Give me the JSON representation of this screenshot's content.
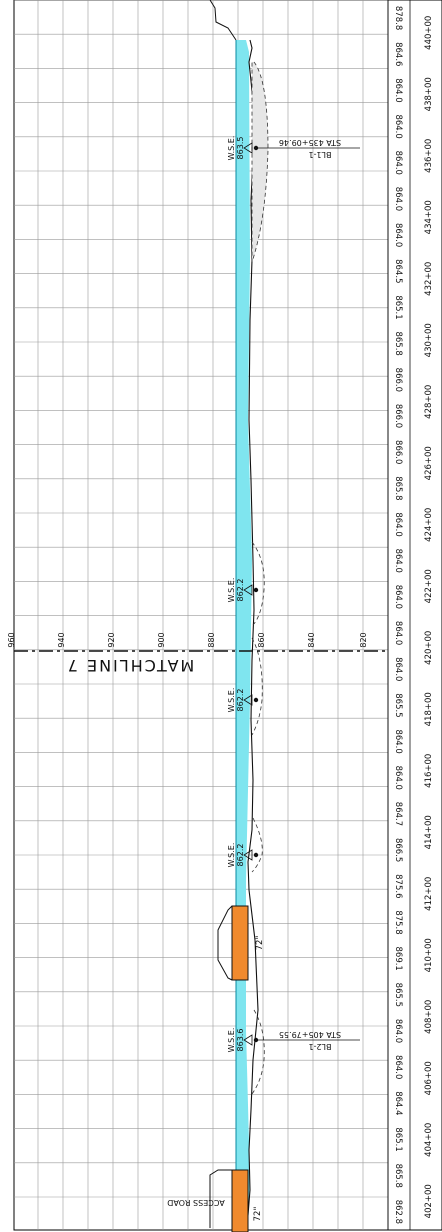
{
  "stations": [
    "402+00",
    "404+00",
    "406+00",
    "408+00",
    "410+00",
    "412+00",
    "414+00",
    "416+00",
    "418+00",
    "420+00",
    "422+00",
    "424+00",
    "426+00",
    "428+00",
    "430+00",
    "432+00",
    "434+00",
    "436+00",
    "438+00",
    "440+00"
  ],
  "ground_elevations": [
    "862.8",
    "865.8",
    "865.1",
    "864.4",
    "864.0",
    "864.0",
    "865.5",
    "869.1",
    "875.8",
    "875.6",
    "866.5",
    "864.7",
    "864.0",
    "864.0",
    "865.5",
    "864.0",
    "864.0",
    "864.0",
    "864.0",
    "864.0",
    "865.8",
    "866.0",
    "866.0",
    "866.0",
    "865.8",
    "865.1",
    "864.5",
    "864.0",
    "864.0",
    "864.0",
    "864.0",
    "864.0",
    "864.6",
    "878.8"
  ],
  "elevation_axis": [
    "960",
    "940",
    "920",
    "900",
    "880",
    "860",
    "840",
    "820"
  ],
  "matchline_label": "MATCHLINE 7",
  "wse_markers": [
    {
      "label": "W.S.E.",
      "value": "863.6"
    },
    {
      "label": "W.S.E.",
      "value": "862.2"
    },
    {
      "label": "W.S.E.",
      "value": "862.2"
    },
    {
      "label": "W.S.E.",
      "value": "862.2"
    },
    {
      "label": "W.S.E.",
      "value": "863.5"
    }
  ],
  "callouts": [
    {
      "sta": "STA 405+79.55",
      "id": "BL2-1"
    },
    {
      "sta": "STA 435+09.46",
      "id": "BL1-1"
    }
  ],
  "culverts": [
    "72\"",
    "72\""
  ],
  "access_road": "ACCESS ROAD",
  "colors": {
    "water": "#7fe5ef",
    "culvert": "#f08a2e",
    "scour": "#e5e5e5"
  }
}
